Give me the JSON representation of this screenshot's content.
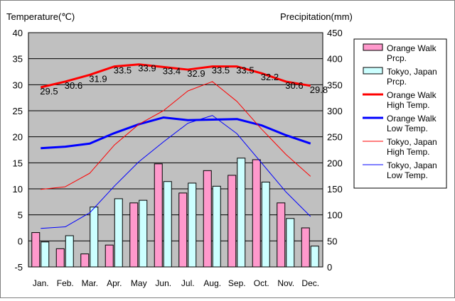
{
  "chart_data": {
    "type": "bar+line",
    "title": "",
    "left_axis_title": "Temperature(℃)",
    "right_axis_title": "Precipitation(mm)",
    "categories": [
      "Jan.",
      "Feb.",
      "Mar.",
      "Apr.",
      "May",
      "Jun.",
      "Jul.",
      "Aug.",
      "Sep.",
      "Oct.",
      "Nov.",
      "Dec."
    ],
    "left_ylim": [
      -5,
      40
    ],
    "left_ticks": [
      -5,
      0,
      5,
      10,
      15,
      20,
      25,
      30,
      35,
      40
    ],
    "right_ylim": [
      0,
      450
    ],
    "right_ticks": [
      0,
      50,
      100,
      150,
      200,
      250,
      300,
      350,
      400,
      450
    ],
    "grid": "horizontal",
    "legend_position": "right",
    "plot_background": "#c0c0c0",
    "bar_series": [
      {
        "name": "Orange Walk Prcp.",
        "legend_lines": [
          "Orange Walk",
          "Prcp."
        ],
        "color": "#ff99cc",
        "values": [
          66,
          35,
          25,
          42,
          123,
          198,
          142,
          185,
          176,
          206,
          123,
          75
        ]
      },
      {
        "name": "Tokyo, Japan Prcp.",
        "legend_lines": [
          "Tokyo, Japan",
          "Prcp."
        ],
        "color": "#ccffff",
        "values": [
          48,
          60,
          115,
          131,
          128,
          164,
          161,
          155,
          209,
          163,
          93,
          40
        ]
      }
    ],
    "line_series": [
      {
        "name": "Orange Walk High Temp.",
        "legend_lines": [
          "Orange Walk",
          "High Temp."
        ],
        "color": "#ff0000",
        "width": 3,
        "values": [
          29.5,
          30.6,
          31.9,
          33.5,
          33.9,
          33.4,
          32.9,
          33.5,
          33.5,
          32.2,
          30.6,
          29.8
        ],
        "labels": [
          "29.5",
          "30.6",
          "31.9",
          "33.5",
          "33.9",
          "33.4",
          "32.9",
          "33.5",
          "33.5",
          "32.2",
          "30.6",
          "29.8"
        ]
      },
      {
        "name": "Orange Walk Low Temp.",
        "legend_lines": [
          "Orange Walk",
          "Low Temp."
        ],
        "color": "#0000ff",
        "width": 3,
        "values": [
          17.8,
          18.1,
          18.7,
          20.7,
          22.4,
          23.7,
          23.2,
          23.3,
          23.4,
          22.2,
          20.3,
          18.7
        ]
      },
      {
        "name": "Tokyo, Japan High Temp.",
        "legend_lines": [
          "Tokyo, Japan",
          "High Temp."
        ],
        "color": "#ff0000",
        "width": 1,
        "values": [
          9.9,
          10.4,
          13.0,
          18.4,
          22.4,
          25.0,
          28.8,
          30.6,
          26.8,
          21.5,
          16.6,
          12.4
        ]
      },
      {
        "name": "Tokyo, Japan Low Temp.",
        "legend_lines": [
          "Tokyo, Japan",
          "Low Temp."
        ],
        "color": "#0000ff",
        "width": 1,
        "values": [
          2.4,
          2.7,
          5.4,
          10.5,
          15.2,
          19.0,
          22.6,
          24.1,
          20.6,
          15.0,
          9.4,
          4.7
        ]
      }
    ]
  }
}
